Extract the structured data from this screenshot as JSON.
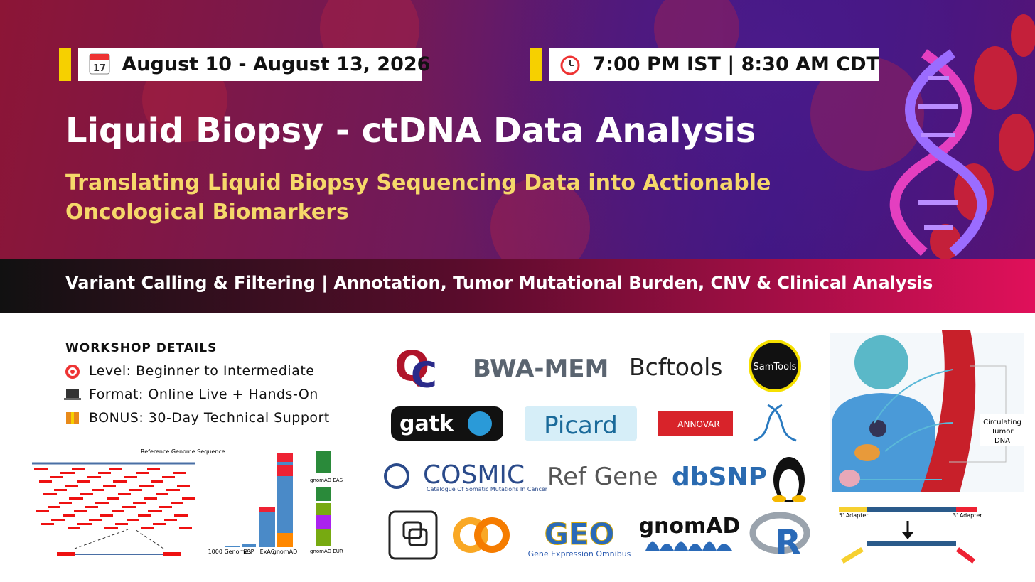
{
  "header": {
    "date": "August 10 - August 13, 2026",
    "time": "7:00 PM IST | 8:30 AM CDT",
    "title": "Liquid Biopsy - ctDNA Data Analysis",
    "subtitle_lines": [
      "Translating Liquid Biopsy Sequencing Data into Actionable",
      "Oncological Biomarkers"
    ],
    "topics": "Variant Calling & Filtering | Annotation, Tumor Mutational Burden, CNV & Clinical Analysis"
  },
  "details": {
    "heading": "WORKSHOP DETAILS",
    "items": [
      "Level: Beginner to Intermediate",
      "Format: Online Live + Hands-On",
      "BONUS: 30-Day Technical Support"
    ]
  },
  "logos": {
    "bwa": "BWA-MEM",
    "bcftools": "Bcftools",
    "samtools": "SamTools",
    "gatk": "gatk",
    "picard": "Picard",
    "annovar": "ANNOVAR",
    "cosmic": "COSMIC",
    "cosmic_sub": "Catalogue Of Somatic Mutations In Cancer",
    "refgene": "Ref Gene",
    "dbsnp": "dbSNP",
    "geo": "GEO",
    "geo_sub": "Gene Expression Omnibus",
    "gnomad": "gnomAD"
  },
  "figures": {
    "reference": "Reference Genome Sequence",
    "databases": [
      "1000 Genomes",
      "ESP",
      "ExAC",
      "gnomAD"
    ],
    "eas": "gnomAD EAS",
    "eur": "gnomAD EUR",
    "ctdna": "Circulating Tumor DNA",
    "adapter5": "5' Adapter",
    "adapter3": "3' Adapter"
  }
}
